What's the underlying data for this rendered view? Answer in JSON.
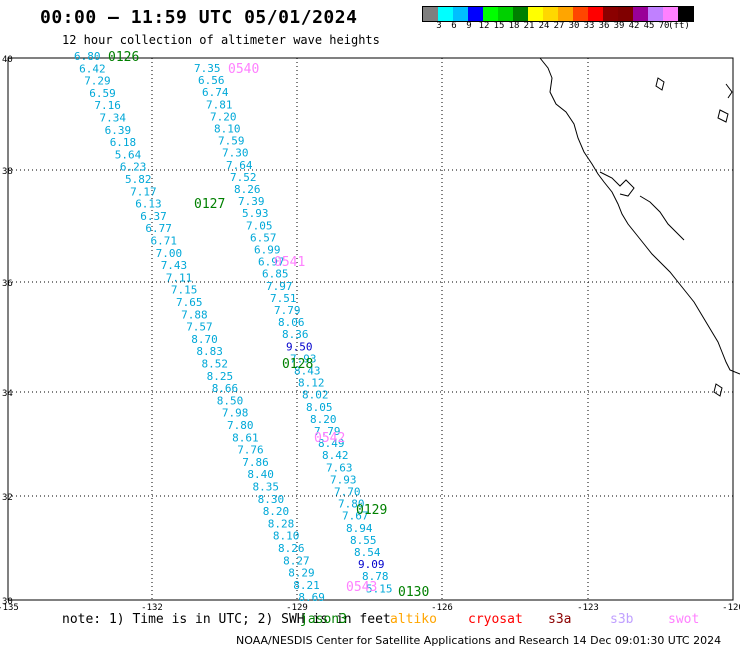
{
  "header": {
    "title": "00:00 – 11:59 UTC 05/01/2024",
    "subtitle": "12 hour collection of altimeter wave heights"
  },
  "colorbar": {
    "colors": [
      "#7f7f7f",
      "#00ffff",
      "#00bfff",
      "#0000ff",
      "#00ff00",
      "#00d000",
      "#008000",
      "#ffff00",
      "#ffd700",
      "#ffa500",
      "#ff4500",
      "#ff0000",
      "#8b0000",
      "#800000",
      "#990099",
      "#c080ff",
      "#ff80ff",
      "#000000"
    ],
    "ticks": [
      "3",
      "6",
      "9",
      "12",
      "15",
      "18",
      "21",
      "24",
      "27",
      "30",
      "33",
      "36",
      "39",
      "42",
      "45",
      "70",
      "(ft)"
    ]
  },
  "axes": {
    "lon_ticks": [
      "-135",
      "-132",
      "-129",
      "-126",
      "-123",
      "-120"
    ],
    "lat_ticks": [
      "40",
      "38",
      "36",
      "34",
      "32",
      "30"
    ]
  },
  "passes": [
    {
      "id": "0126",
      "color": "#008000"
    },
    {
      "id": "0540",
      "color": "#ff80ff"
    },
    {
      "id": "0127",
      "color": "#008000"
    },
    {
      "id": "0541",
      "color": "#ff80ff"
    },
    {
      "id": "0128",
      "color": "#008000"
    },
    {
      "id": "0542",
      "color": "#ff80ff"
    },
    {
      "id": "0129",
      "color": "#008000"
    },
    {
      "id": "0543",
      "color": "#ff80ff"
    },
    {
      "id": "0130",
      "color": "#008000"
    }
  ],
  "track1": [
    "6.80",
    "6.42",
    "7.29",
    "6.59",
    "7.16",
    "7.34",
    "6.39",
    "6.18",
    "5.64",
    "6.23",
    "5.82",
    "7.17",
    "6.13",
    "6.37",
    "6.77",
    "6.71",
    "7.00",
    "7.43",
    "7.11",
    "7.15",
    "7.65",
    "7.88",
    "7.57",
    "8.70",
    "8.83",
    "8.52",
    "8.25",
    "8.66",
    "8.50",
    "7.98",
    "7.80",
    "8.61",
    "7.76",
    "7.86",
    "8.40",
    "8.35",
    "8.30",
    "8.20",
    "8.28",
    "8.10",
    "8.26",
    "8.27",
    "8.29",
    "8.21",
    "8.69"
  ],
  "track2": [
    "7.35",
    "6.56",
    "6.74",
    "7.81",
    "7.20",
    "8.10",
    "7.59",
    "7.30",
    "7.64",
    "7.52",
    "8.26",
    "7.39",
    "5.93",
    "7.05",
    "6.57",
    "6.99",
    "6.97",
    "6.85",
    "7.97",
    "7.51",
    "7.79",
    "8.06",
    "8.36",
    "9.50",
    "7.93",
    "8.43",
    "8.12",
    "8.02",
    "8.05",
    "8.20",
    "7.79",
    "8.49",
    "8.42",
    "7.63",
    "7.93",
    "7.70",
    "7.80",
    "7.67",
    "8.94",
    "8.55",
    "8.54",
    "9.09",
    "8.78",
    "5.15"
  ],
  "footer": {
    "note": "note: 1) Time is in UTC; 2) SWH is in feet",
    "satellites": [
      {
        "name": "jason3",
        "color": "#008000"
      },
      {
        "name": "altiko",
        "color": "#ffa500"
      },
      {
        "name": "cryosat",
        "color": "#ff0000"
      },
      {
        "name": "s3a",
        "color": "#8b0000"
      },
      {
        "name": "s3b",
        "color": "#c0a0ff"
      },
      {
        "name": "swot",
        "color": "#ff80ff"
      }
    ],
    "credit": "NOAA/NESDIS Center for Satellite Applications and Research   14 Dec 09:01:30 UTC 2024"
  }
}
